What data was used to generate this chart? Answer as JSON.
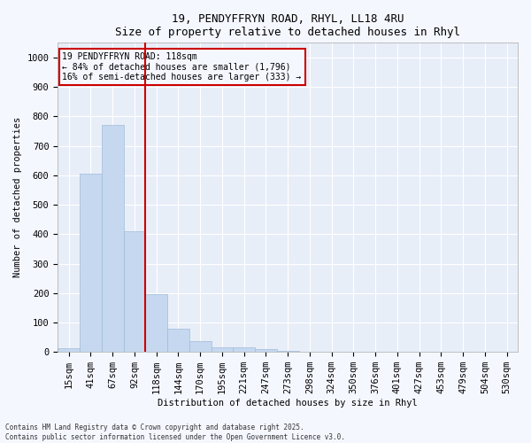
{
  "title_line1": "19, PENDYFFRYN ROAD, RHYL, LL18 4RU",
  "title_line2": "Size of property relative to detached houses in Rhyl",
  "xlabel": "Distribution of detached houses by size in Rhyl",
  "ylabel": "Number of detached properties",
  "categories": [
    "15sqm",
    "41sqm",
    "67sqm",
    "92sqm",
    "118sqm",
    "144sqm",
    "170sqm",
    "195sqm",
    "221sqm",
    "247sqm",
    "273sqm",
    "298sqm",
    "324sqm",
    "350sqm",
    "376sqm",
    "401sqm",
    "427sqm",
    "453sqm",
    "479sqm",
    "504sqm",
    "530sqm"
  ],
  "values": [
    13,
    605,
    770,
    410,
    195,
    78,
    37,
    15,
    15,
    10,
    3,
    0,
    0,
    0,
    0,
    0,
    0,
    0,
    0,
    0,
    0
  ],
  "bar_color": "#c5d8f0",
  "bar_edgecolor": "#a0bcd8",
  "vline_x_idx": 4,
  "vline_color": "#cc0000",
  "annotation_text": "19 PENDYFFRYN ROAD: 118sqm\n← 84% of detached houses are smaller (1,796)\n16% of semi-detached houses are larger (333) →",
  "annotation_box_edgecolor": "#cc0000",
  "plot_bg_color": "#e8eef8",
  "figure_bg_color": "#f5f7ff",
  "grid_color": "#ffffff",
  "ylim": [
    0,
    1050
  ],
  "yticks": [
    0,
    100,
    200,
    300,
    400,
    500,
    600,
    700,
    800,
    900,
    1000
  ],
  "footnote": "Contains HM Land Registry data © Crown copyright and database right 2025.\nContains public sector information licensed under the Open Government Licence v3.0."
}
